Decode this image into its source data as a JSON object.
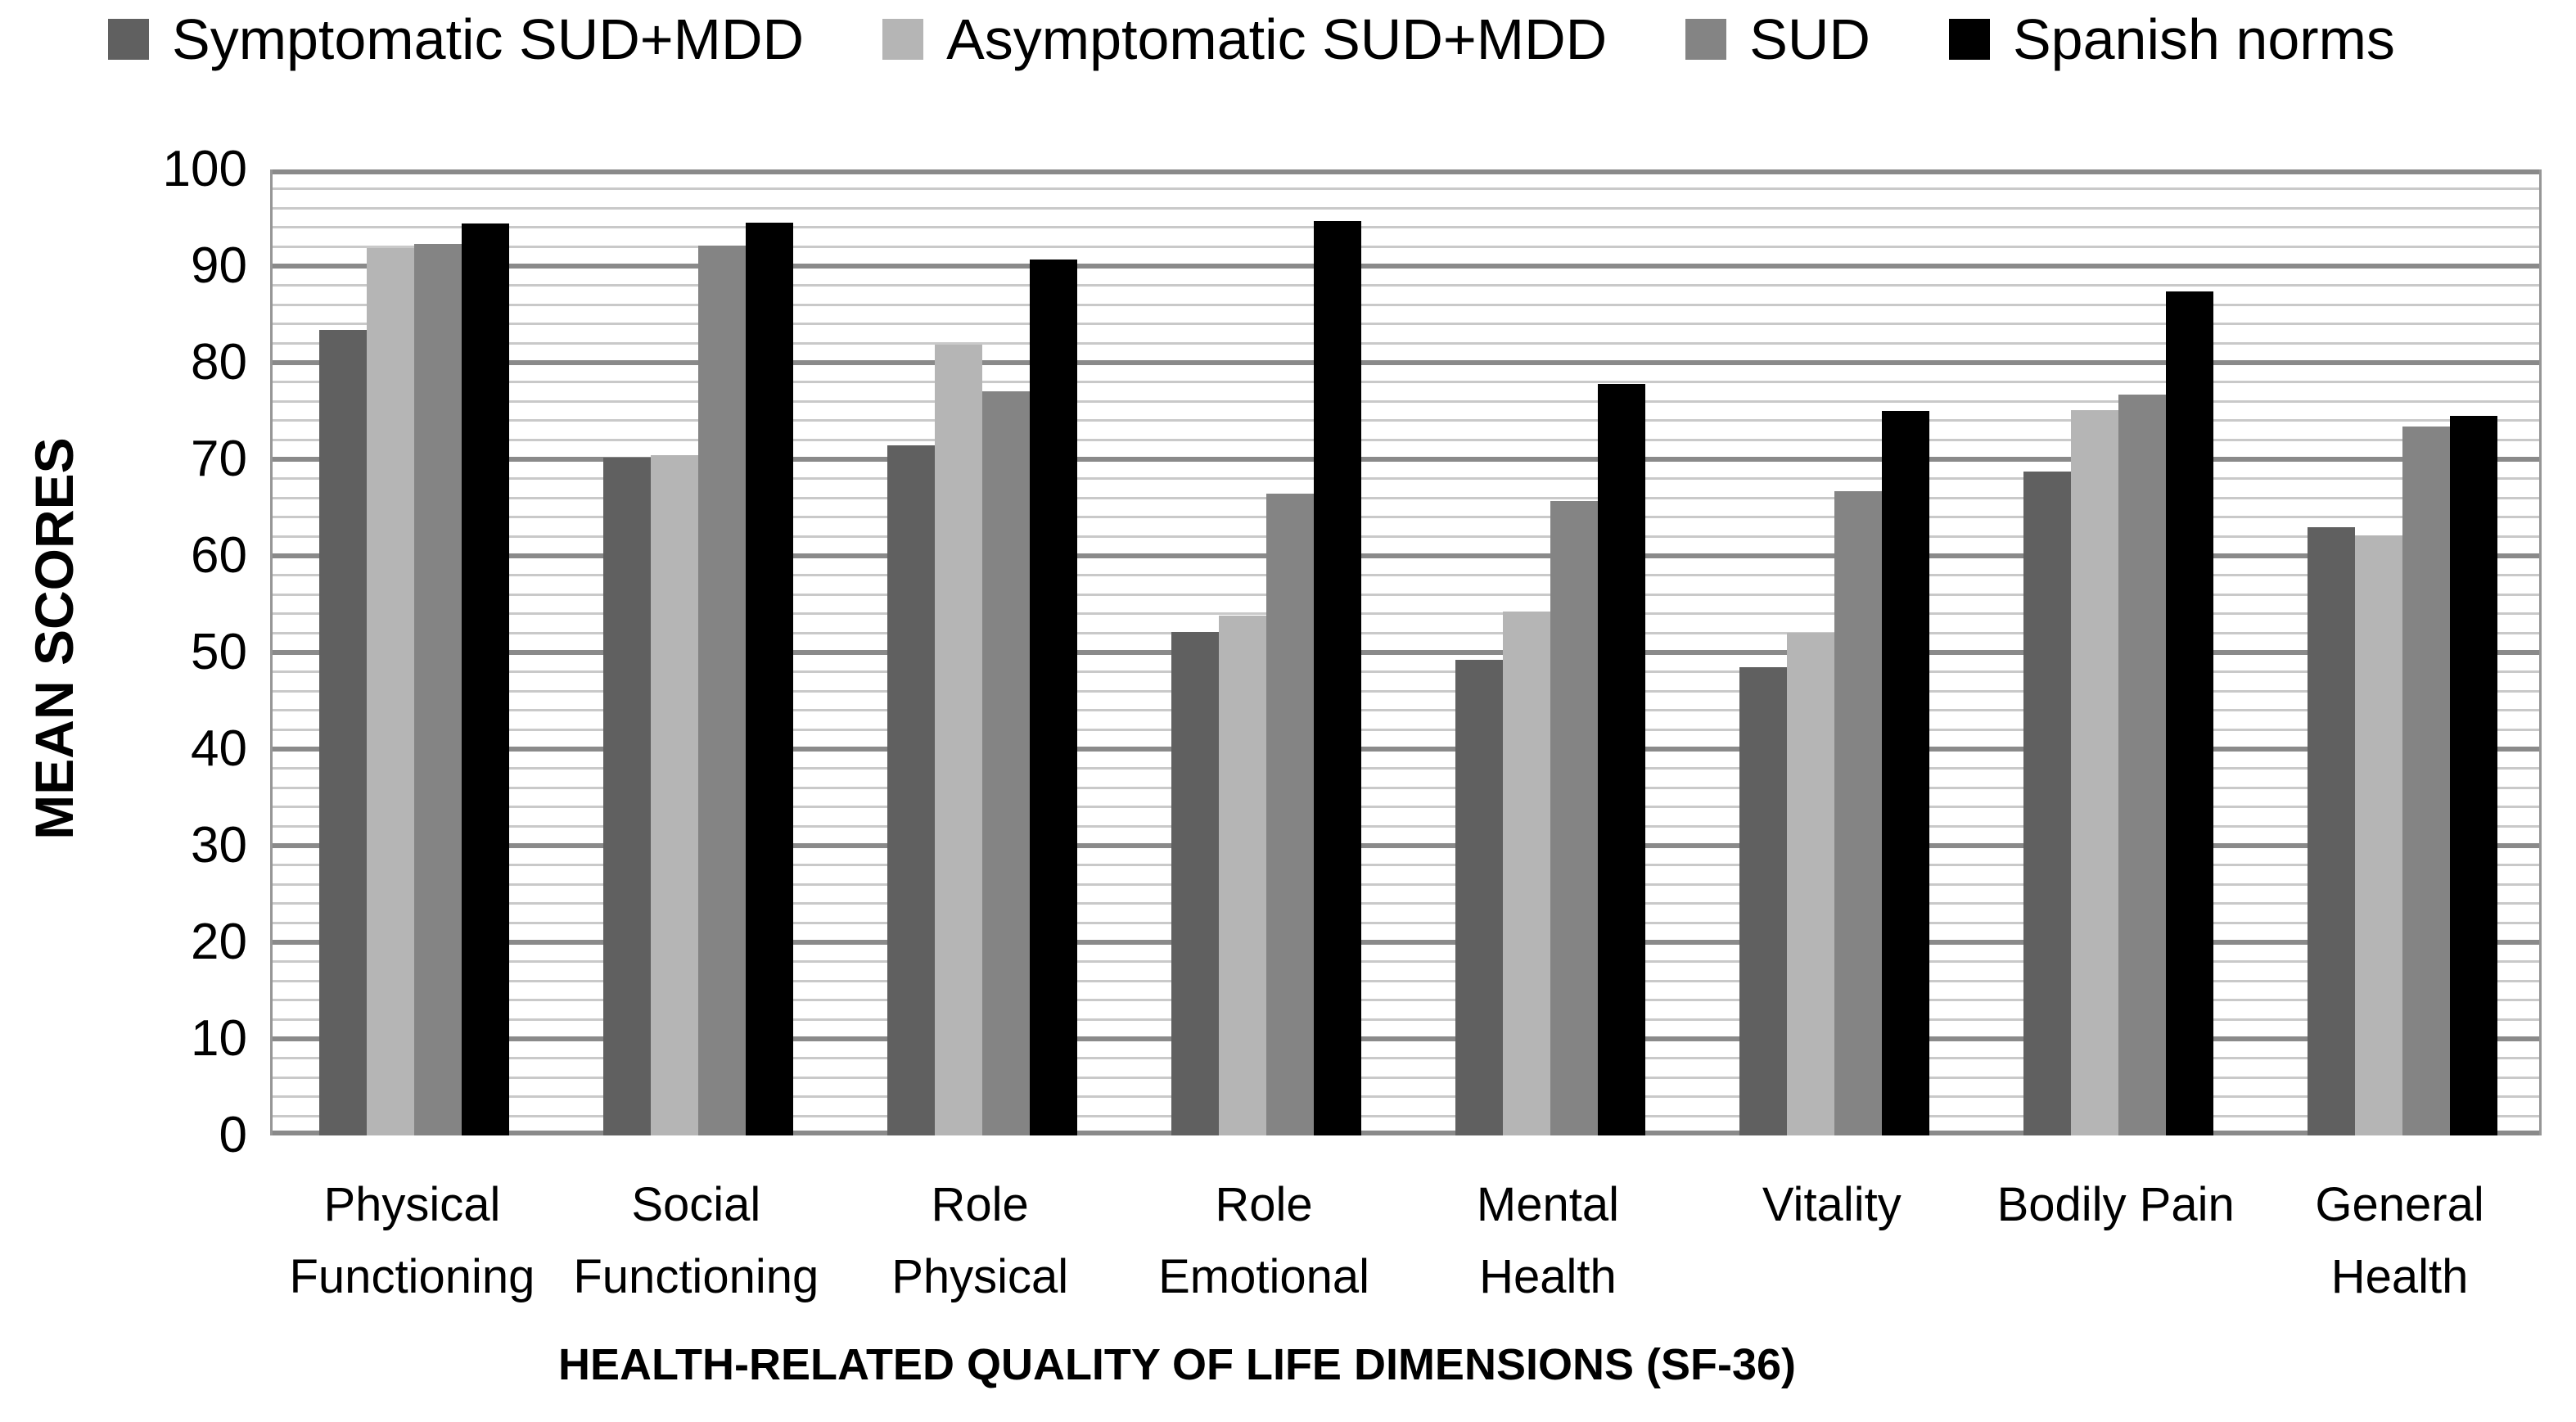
{
  "colors": {
    "series_symptomatic": "#606060",
    "series_asymptomatic": "#b5b5b5",
    "series_sud": "#848484",
    "series_spanish_norms": "#000000",
    "major_gridline": "#8a8a8a",
    "minor_gridline": "#c9c9c9",
    "plot_border": "#969696",
    "background": "#ffffff"
  },
  "chart_data": {
    "type": "bar",
    "title": "",
    "xlabel": "HEALTH-RELATED QUALITY OF LIFE DIMENSIONS (SF-36)",
    "ylabel": "MEAN SCORES",
    "ylim": [
      0,
      100
    ],
    "yticks": [
      0,
      10,
      20,
      30,
      40,
      50,
      60,
      70,
      80,
      90,
      100
    ],
    "minor_gridline_interval": 2,
    "major_gridline_interval": 10,
    "grid": true,
    "legend_position": "top",
    "categories": [
      "Physical Functioning",
      "Social Functioning",
      "Role Physical",
      "Role Emotional",
      "Mental Health",
      "Vitality",
      "Bodily Pain",
      "General Health"
    ],
    "category_lines": [
      [
        "Physical",
        "Functioning"
      ],
      [
        "Social",
        "Functioning"
      ],
      [
        "Role",
        "Physical"
      ],
      [
        "Role",
        "Emotional"
      ],
      [
        "Mental",
        "Health"
      ],
      [
        "Vitality"
      ],
      [
        "Bodily Pain"
      ],
      [
        "General",
        "Health"
      ]
    ],
    "series": [
      {
        "name": "Symptomatic SUD+MDD",
        "color": "#606060",
        "values": [
          83.4,
          70.2,
          71.4,
          52.1,
          49.2,
          48.5,
          68.7,
          63.0
        ]
      },
      {
        "name": "Asymptomatic SUD+MDD",
        "color": "#b5b5b5",
        "values": [
          91.9,
          70.4,
          81.9,
          53.8,
          54.2,
          52.0,
          75.1,
          62.1
        ]
      },
      {
        "name": "SUD",
        "color": "#848484",
        "values": [
          92.3,
          92.1,
          77.0,
          66.4,
          65.7,
          66.7,
          76.7,
          73.4
        ]
      },
      {
        "name": "Spanish norms",
        "color": "#000000",
        "values": [
          94.4,
          94.5,
          90.7,
          94.7,
          77.8,
          75.0,
          87.4,
          74.5
        ]
      }
    ]
  }
}
